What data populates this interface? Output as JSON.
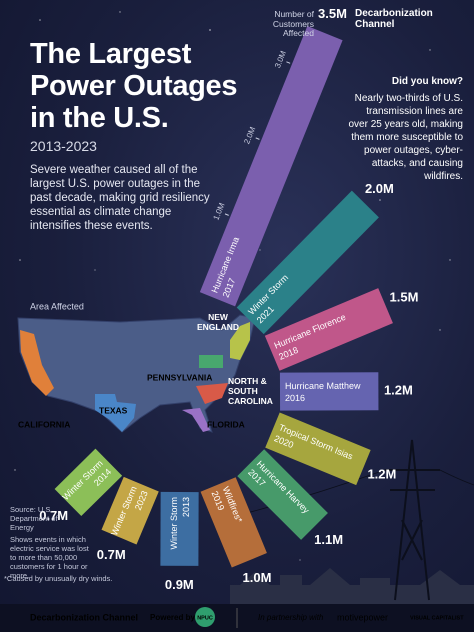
{
  "header": {
    "brand": "Decarbonization Channel",
    "title": [
      "The Largest",
      "Power Outages",
      "in the U.S."
    ],
    "subtitle": "2013-2023",
    "description": "Severe weather caused all of the largest U.S. power outages in the past decade, making grid resiliency essential as climate change intensifies these events."
  },
  "did_you_know": {
    "heading": "Did you know?",
    "text": "Nearly two-thirds of U.S. transmission lines are over 25 years old, making them more susceptible to power outages, cyber-attacks, and causing wildfires."
  },
  "map": {
    "title": "Area Affected",
    "regions": [
      "NEW ENGLAND",
      "PENNSYLVANIA",
      "NORTH & SOUTH CAROLINA",
      "TEXAS",
      "CALIFORNIA",
      "FLORIDA"
    ]
  },
  "notes": {
    "source": "Source: U.S. Department of Energy",
    "definition": "Shows events in which electric service was lost to more than 50,000 customers for 1 hour or more.",
    "footnote": "*Caused by unusually dry winds."
  },
  "footer": {
    "brand": "Decarbonization Channel",
    "powered_by": "Powered by",
    "npuc": "NPUC",
    "partnership": "In partnership with",
    "partner": "motivepower",
    "publisher": "VISUAL CAPITALIST"
  },
  "chart_data": {
    "type": "radial",
    "y_label": "Number of Customers Affected",
    "categories": [
      "Hurricane Irma",
      "Winter Storm",
      "Hurricane Florence",
      "Hurricane Matthew",
      "Tropical Storm Isias",
      "Hurricane Harvey",
      "Wildfires*",
      "Winter Storm",
      "Winter Storm",
      "Winter Storm"
    ],
    "years": [
      "2017",
      "2021",
      "2018",
      "2016",
      "2020",
      "2017",
      "2019",
      "2013",
      "2023",
      "2014"
    ],
    "values": [
      3.5,
      2.0,
      1.5,
      1.2,
      1.2,
      1.1,
      1.0,
      0.9,
      0.7,
      0.7
    ],
    "value_labels": [
      "3.5M",
      "2.0M",
      "1.5M",
      "1.2M",
      "1.2M",
      "1.1M",
      "1.0M",
      "0.9M",
      "0.7M",
      "0.7M"
    ],
    "colors": [
      "#7b5fae",
      "#2b8189",
      "#c0578a",
      "#6564b0",
      "#a6a63e",
      "#479a6a",
      "#b56e3a",
      "#3d6ea2",
      "#c4a646",
      "#8cbf58"
    ],
    "ylim": [
      0,
      3.5
    ],
    "yticks": [
      {
        "value": 1,
        "label": "1.0M"
      },
      {
        "value": 2,
        "label": "2.0M"
      },
      {
        "value": 3,
        "label": "3.0M"
      }
    ]
  }
}
